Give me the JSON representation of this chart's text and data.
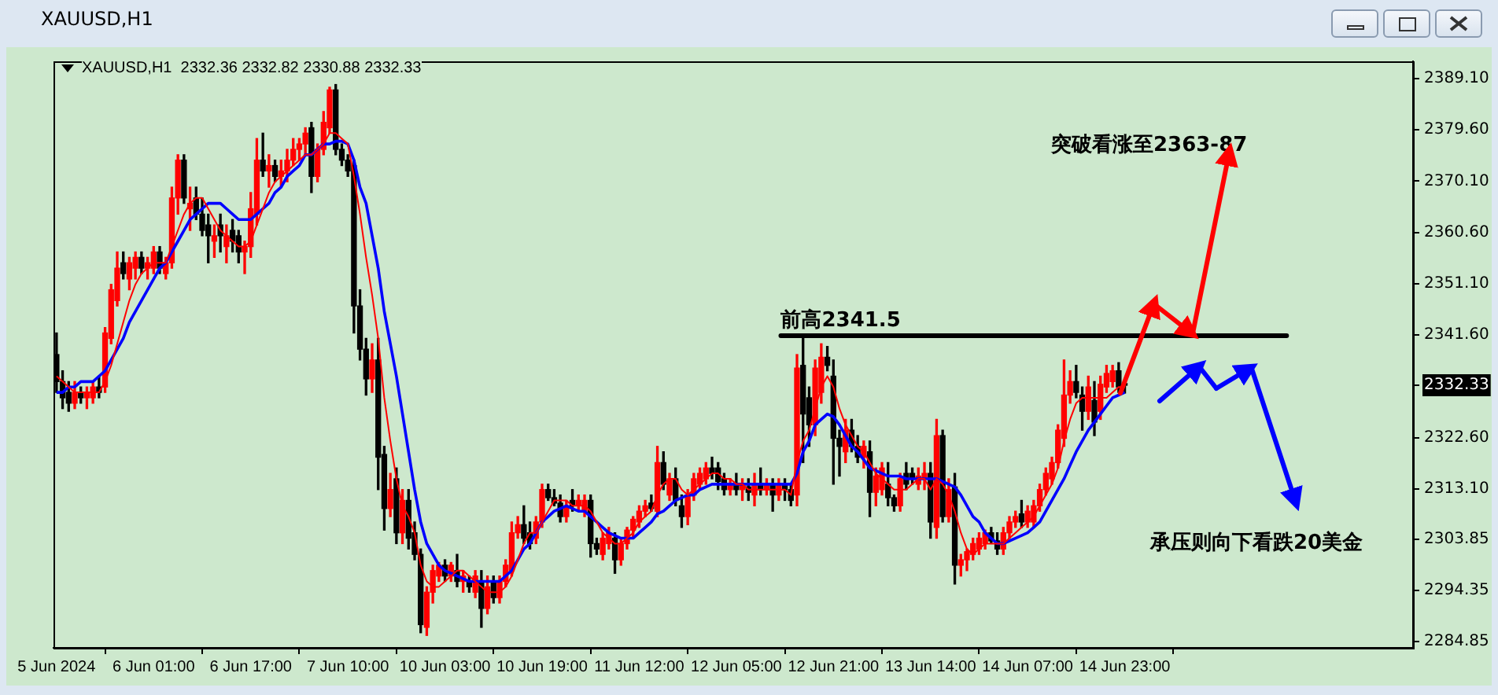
{
  "chart_data": {
    "type": "candlestick",
    "title": "XAUUSD,H1",
    "subtitle": "XAUUSD,H1  2332.36 2332.82 2330.88 2332.33",
    "annotations": [
      "突破看涨至2363-87",
      "承压则向下看跌20美金"
    ],
    "categories": [
      "5 Jun 2024",
      null,
      null,
      null,
      null,
      null,
      null,
      null,
      null,
      null,
      null,
      null,
      null,
      null,
      null,
      null,
      "6 Jun 01:00",
      null,
      null,
      null,
      null,
      null,
      null,
      null,
      null,
      null,
      null,
      null,
      null,
      null,
      null,
      null,
      "6 Jun 17:00",
      null,
      null,
      null,
      null,
      null,
      null,
      null,
      null,
      null,
      null,
      null,
      null,
      null,
      null,
      null,
      "7 Jun 10:00",
      null,
      null,
      null,
      null,
      null,
      null,
      null,
      null,
      null,
      null,
      null,
      null,
      null,
      null,
      null,
      "10 Jun 03:00",
      null,
      null,
      null,
      null,
      null,
      null,
      null,
      null,
      null,
      null,
      null,
      null,
      null,
      null,
      null,
      "10 Jun 19:00",
      null,
      null,
      null,
      null,
      null,
      null,
      null,
      null,
      null,
      null,
      null,
      null,
      null,
      null,
      null,
      "11 Jun 12:00",
      null,
      null,
      null,
      null,
      null,
      null,
      null,
      null,
      null,
      null,
      null,
      null,
      null,
      null,
      null,
      "12 Jun 05:00",
      null,
      null,
      null,
      null,
      null,
      null,
      null,
      null,
      null,
      null,
      null,
      null,
      null,
      null,
      null,
      "12 Jun 21:00",
      null,
      null,
      null,
      null,
      null,
      null,
      null,
      null,
      null,
      null,
      null,
      null,
      null,
      null,
      null,
      "13 Jun 14:00",
      null,
      null,
      null,
      null,
      null,
      null,
      null,
      null,
      null,
      null,
      null,
      null,
      null,
      null,
      null,
      "14 Jun 07:00",
      null,
      null,
      null,
      null,
      null,
      null,
      null,
      null,
      null,
      null,
      null,
      null,
      null,
      null,
      null,
      "14 Jun 23:00"
    ],
    "ohlc": [
      [
        2338,
        2342,
        2331,
        2333
      ],
      [
        2333,
        2335,
        2328,
        2330
      ],
      [
        2331,
        2333,
        2327.5,
        2329
      ],
      [
        2329,
        2333,
        2328,
        2331
      ],
      [
        2331,
        2332,
        2329,
        2330
      ],
      [
        2330,
        2332,
        2328,
        2331
      ],
      [
        2330,
        2333,
        2329,
        2332
      ],
      [
        2332,
        2334,
        2330,
        2331
      ],
      [
        2332,
        2343,
        2331,
        2342
      ],
      [
        2341,
        2351,
        2340,
        2350
      ],
      [
        2348,
        2357,
        2347,
        2354
      ],
      [
        2355,
        2357,
        2352,
        2353
      ],
      [
        2352,
        2356,
        2350,
        2355
      ],
      [
        2354,
        2357,
        2352,
        2356
      ],
      [
        2356,
        2357,
        2353,
        2354
      ],
      [
        2354,
        2356,
        2352,
        2355
      ],
      [
        2354,
        2358,
        2353,
        2357
      ],
      [
        2357,
        2358,
        2353,
        2354
      ],
      [
        2353,
        2356,
        2352,
        2355
      ],
      [
        2355,
        2369,
        2354,
        2367
      ],
      [
        2367,
        2375,
        2364,
        2374
      ],
      [
        2374,
        2375,
        2366,
        2367
      ],
      [
        2365,
        2369,
        2361,
        2366
      ],
      [
        2367,
        2369,
        2363,
        2364
      ],
      [
        2364,
        2367,
        2360,
        2361
      ],
      [
        2362,
        2364,
        2355,
        2360
      ],
      [
        2359,
        2362,
        2356,
        2360
      ],
      [
        2362,
        2364,
        2357,
        2360
      ],
      [
        2358,
        2362,
        2355,
        2360
      ],
      [
        2361,
        2363,
        2357,
        2359
      ],
      [
        2360,
        2361,
        2355,
        2357
      ],
      [
        2357,
        2359,
        2353,
        2358
      ],
      [
        2358,
        2368,
        2356,
        2365
      ],
      [
        2364,
        2378,
        2362,
        2374
      ],
      [
        2374,
        2379,
        2371,
        2372
      ],
      [
        2372,
        2375,
        2369,
        2373
      ],
      [
        2373,
        2374,
        2370,
        2371
      ],
      [
        2371,
        2374,
        2369,
        2372
      ],
      [
        2372,
        2376,
        2370,
        2374
      ],
      [
        2374,
        2378,
        2373,
        2376
      ],
      [
        2376,
        2378,
        2374,
        2377
      ],
      [
        2377,
        2380,
        2375,
        2379
      ],
      [
        2380,
        2381,
        2368,
        2371
      ],
      [
        2371,
        2377,
        2370,
        2376
      ],
      [
        2376,
        2383,
        2375,
        2381
      ],
      [
        2380,
        2387.5,
        2379,
        2387
      ],
      [
        2387,
        2388,
        2375,
        2376
      ],
      [
        2376,
        2377,
        2373,
        2374
      ],
      [
        2374,
        2375,
        2371,
        2372
      ],
      [
        2373,
        2374,
        2342,
        2347
      ],
      [
        2347,
        2350,
        2337,
        2339
      ],
      [
        2339,
        2341,
        2330.5,
        2333.5
      ],
      [
        2333.5,
        2340,
        2331,
        2337
      ],
      [
        2337,
        2341,
        2313,
        2319
      ],
      [
        2319.5,
        2321,
        2305.5,
        2309.5
      ],
      [
        2309.5,
        2316,
        2308,
        2313
      ],
      [
        2315,
        2317,
        2303,
        2305
      ],
      [
        2305,
        2313,
        2303,
        2311
      ],
      [
        2311,
        2313,
        2302,
        2304
      ],
      [
        2305,
        2307,
        2300,
        2301
      ],
      [
        2301,
        2302,
        2286.5,
        2288
      ],
      [
        2287.5,
        2295,
        2286,
        2294
      ],
      [
        2294,
        2299,
        2292,
        2298
      ],
      [
        2297,
        2299.5,
        2296,
        2299
      ],
      [
        2299,
        2300,
        2296,
        2297
      ],
      [
        2297,
        2299.5,
        2296,
        2299
      ],
      [
        2298,
        2301,
        2295,
        2296
      ],
      [
        2296,
        2298,
        2294,
        2297
      ],
      [
        2296,
        2297,
        2294,
        2295
      ],
      [
        2294,
        2298,
        2293,
        2297
      ],
      [
        2296,
        2298,
        2287.5,
        2291
      ],
      [
        2291,
        2297,
        2290,
        2295
      ],
      [
        2296,
        2297,
        2292,
        2293
      ],
      [
        2293,
        2297,
        2292,
        2296
      ],
      [
        2296,
        2300,
        2295,
        2299
      ],
      [
        2298,
        2307,
        2297,
        2305
      ],
      [
        2305,
        2308,
        2304,
        2306.5
      ],
      [
        2306.5,
        2310,
        2303,
        2304
      ],
      [
        2305,
        2307,
        2302,
        2303
      ],
      [
        2304,
        2308,
        2303,
        2307
      ],
      [
        2307,
        2314,
        2306,
        2313
      ],
      [
        2313,
        2314,
        2311,
        2311.5
      ],
      [
        2311.5,
        2313,
        2310,
        2310.5
      ],
      [
        2310.5,
        2312,
        2307,
        2308
      ],
      [
        2308,
        2311,
        2307,
        2310
      ],
      [
        2311,
        2313,
        2309,
        2310
      ],
      [
        2310,
        2312,
        2309,
        2311
      ],
      [
        2309,
        2312,
        2308,
        2311
      ],
      [
        2311,
        2312,
        2300.5,
        2303
      ],
      [
        2303,
        2304,
        2301,
        2302
      ],
      [
        2301,
        2305,
        2300,
        2304
      ],
      [
        2303,
        2306,
        2302,
        2305
      ],
      [
        2304,
        2305,
        2297.5,
        2300
      ],
      [
        2300,
        2304,
        2299,
        2303
      ],
      [
        2303,
        2306,
        2302,
        2305.5
      ],
      [
        2305.5,
        2308,
        2304,
        2307.5
      ],
      [
        2307,
        2310,
        2306,
        2309
      ],
      [
        2309,
        2311,
        2308,
        2310
      ],
      [
        2310.5,
        2312,
        2309,
        2309.5
      ],
      [
        2309,
        2321,
        2308,
        2318
      ],
      [
        2318,
        2320,
        2313,
        2314
      ],
      [
        2312,
        2316,
        2311,
        2315
      ],
      [
        2315,
        2317,
        2310,
        2311
      ],
      [
        2310,
        2312,
        2306,
        2308
      ],
      [
        2308,
        2313,
        2306.5,
        2312
      ],
      [
        2312,
        2316,
        2311,
        2315
      ],
      [
        2314,
        2317,
        2313,
        2316
      ],
      [
        2315,
        2318,
        2314,
        2317
      ],
      [
        2317,
        2319,
        2315,
        2316
      ],
      [
        2317,
        2318,
        2313,
        2314.5
      ],
      [
        2315,
        2316,
        2312,
        2313
      ],
      [
        2313,
        2315,
        2312,
        2314
      ],
      [
        2314,
        2316,
        2312,
        2313
      ],
      [
        2313,
        2315,
        2311,
        2314
      ],
      [
        2313.5,
        2315,
        2311,
        2312.5
      ],
      [
        2312,
        2316,
        2310,
        2314
      ],
      [
        2314,
        2317,
        2312,
        2313
      ],
      [
        2313,
        2315,
        2312,
        2314
      ],
      [
        2314,
        2315,
        2309,
        2312
      ],
      [
        2312,
        2315,
        2311,
        2314
      ],
      [
        2314,
        2315,
        2311,
        2313
      ],
      [
        2313,
        2314,
        2310,
        2311
      ],
      [
        2312,
        2338,
        2310,
        2335.5
      ],
      [
        2336,
        2341,
        2318,
        2327
      ],
      [
        2330,
        2332,
        2321,
        2325
      ],
      [
        2325,
        2337,
        2323,
        2335.5
      ],
      [
        2331,
        2340,
        2329,
        2337.5
      ],
      [
        2337.5,
        2339.5,
        2335,
        2336
      ],
      [
        2334,
        2337,
        2314,
        2322.5
      ],
      [
        2322.5,
        2324,
        2315.5,
        2321
      ],
      [
        2320,
        2326,
        2318,
        2324
      ],
      [
        2324,
        2326,
        2320,
        2321
      ],
      [
        2321,
        2323,
        2318,
        2319
      ],
      [
        2319,
        2322,
        2317,
        2321
      ],
      [
        2320,
        2322,
        2308,
        2312.5
      ],
      [
        2312.5,
        2317,
        2310,
        2315.5
      ],
      [
        2313,
        2318,
        2312,
        2317
      ],
      [
        2314,
        2318,
        2310,
        2311.5
      ],
      [
        2311.5,
        2312,
        2309,
        2310
      ],
      [
        2310,
        2316,
        2309,
        2315
      ],
      [
        2316,
        2318,
        2313,
        2314
      ],
      [
        2316,
        2317,
        2314,
        2315
      ],
      [
        2314,
        2317,
        2313,
        2315.5
      ],
      [
        2315,
        2318,
        2313,
        2316
      ],
      [
        2316,
        2318,
        2304,
        2307
      ],
      [
        2306,
        2326,
        2304,
        2323
      ],
      [
        2323,
        2324,
        2307,
        2308
      ],
      [
        2308,
        2315,
        2307,
        2313
      ],
      [
        2313.5,
        2316,
        2295.5,
        2299
      ],
      [
        2299,
        2301,
        2297,
        2300
      ],
      [
        2300,
        2302,
        2298,
        2301.5
      ],
      [
        2301,
        2304,
        2300,
        2303
      ],
      [
        2302,
        2305,
        2301,
        2304
      ],
      [
        2303,
        2305.5,
        2302,
        2305
      ],
      [
        2305,
        2306,
        2303,
        2303.5
      ],
      [
        2303.5,
        2305,
        2301,
        2302
      ],
      [
        2302,
        2306,
        2301,
        2305
      ],
      [
        2305,
        2308,
        2304,
        2307
      ],
      [
        2307,
        2309,
        2306,
        2308
      ],
      [
        2308.5,
        2311,
        2306,
        2307
      ],
      [
        2307,
        2310,
        2306,
        2309
      ],
      [
        2307,
        2311,
        2306,
        2310
      ],
      [
        2310,
        2314,
        2309,
        2313
      ],
      [
        2313,
        2317,
        2312,
        2316
      ],
      [
        2315,
        2319,
        2314,
        2318
      ],
      [
        2318,
        2325,
        2317,
        2324
      ],
      [
        2322.5,
        2337,
        2321,
        2330.5
      ],
      [
        2330.5,
        2335,
        2329,
        2333
      ],
      [
        2333,
        2336,
        2330,
        2331
      ],
      [
        2330.5,
        2332,
        2324,
        2327.5
      ],
      [
        2327.5,
        2334,
        2326,
        2332
      ],
      [
        2329.5,
        2333,
        2323,
        2325.5
      ],
      [
        2327.5,
        2334,
        2326,
        2332.5
      ],
      [
        2332,
        2336,
        2331,
        2334.5
      ],
      [
        2333,
        2336,
        2332,
        2335
      ],
      [
        2335,
        2336.5,
        2331,
        2332
      ],
      [
        2332.36,
        2332.82,
        2330.88,
        2332.33
      ]
    ],
    "colors": [
      "#000000",
      "#000000",
      "#000000",
      "#ff0000",
      "#000000",
      "#ff0000",
      "#ff0000",
      "#000000",
      "#ff0000",
      "#ff0000",
      "#ff0000",
      "#000000",
      "#ff0000",
      "#ff0000",
      "#000000",
      "#ff0000",
      "#ff0000",
      "#000000",
      "#ff0000",
      "#ff0000",
      "#ff0000",
      "#000000",
      "#ff0000",
      "#000000",
      "#000000",
      "#000000",
      "#ff0000",
      "#000000",
      "#ff0000",
      "#000000",
      "#000000",
      "#ff0000",
      "#ff0000",
      "#ff0000",
      "#000000",
      "#ff0000",
      "#000000",
      "#ff0000",
      "#ff0000",
      "#ff0000",
      "#ff0000",
      "#ff0000",
      "#000000",
      "#ff0000",
      "#ff0000",
      "#ff0000",
      "#000000",
      "#000000",
      "#000000",
      "#000000",
      "#000000",
      "#000000",
      "#ff0000",
      "#000000",
      "#000000",
      "#ff0000",
      "#000000",
      "#ff0000",
      "#000000",
      "#000000",
      "#000000",
      "#ff0000",
      "#ff0000",
      "#ff0000",
      "#000000",
      "#ff0000",
      "#000000",
      "#ff0000",
      "#000000",
      "#ff0000",
      "#000000",
      "#ff0000",
      "#000000",
      "#ff0000",
      "#ff0000",
      "#ff0000",
      "#ff0000",
      "#000000",
      "#000000",
      "#ff0000",
      "#ff0000",
      "#000000",
      "#000000",
      "#000000",
      "#ff0000",
      "#000000",
      "#ff0000",
      "#ff0000",
      "#000000",
      "#000000",
      "#ff0000",
      "#ff0000",
      "#000000",
      "#ff0000",
      "#ff0000",
      "#ff0000",
      "#ff0000",
      "#ff0000",
      "#000000",
      "#ff0000",
      "#000000",
      "#ff0000",
      "#000000",
      "#000000",
      "#ff0000",
      "#ff0000",
      "#ff0000",
      "#ff0000",
      "#000000",
      "#000000",
      "#000000",
      "#ff0000",
      "#000000",
      "#ff0000",
      "#000000",
      "#ff0000",
      "#000000",
      "#ff0000",
      "#000000",
      "#ff0000",
      "#000000",
      "#000000",
      "#ff0000",
      "#000000",
      "#000000",
      "#ff0000",
      "#ff0000",
      "#000000",
      "#000000",
      "#000000",
      "#ff0000",
      "#000000",
      "#000000",
      "#ff0000",
      "#000000",
      "#ff0000",
      "#ff0000",
      "#000000",
      "#000000",
      "#ff0000",
      "#000000",
      "#000000",
      "#ff0000",
      "#ff0000",
      "#000000",
      "#ff0000",
      "#000000",
      "#ff0000",
      "#000000",
      "#ff0000",
      "#ff0000",
      "#ff0000",
      "#ff0000",
      "#ff0000",
      "#000000",
      "#000000",
      "#ff0000",
      "#ff0000",
      "#ff0000",
      "#000000",
      "#ff0000",
      "#ff0000",
      "#ff0000",
      "#ff0000",
      "#ff0000",
      "#ff0000",
      "#ff0000",
      "#ff0000",
      "#000000",
      "#000000",
      "#ff0000",
      "#000000",
      "#ff0000",
      "#ff0000",
      "#ff0000",
      "#000000",
      "#000000"
    ],
    "series": [
      {
        "type": "line",
        "color": "#ff0000",
        "values": [
          2334,
          2333,
          2332,
          2331,
          2331,
          2331,
          2331,
          2331,
          2333,
          2336,
          2340,
          2344,
          2348,
          2351,
          2353,
          2354,
          2355,
          2355,
          2355,
          2358,
          2361,
          2364,
          2366,
          2367,
          2367,
          2365,
          2363,
          2361,
          2360,
          2359,
          2358,
          2358,
          2359,
          2362,
          2365,
          2368,
          2370,
          2371,
          2372,
          2373,
          2374,
          2375,
          2375,
          2376,
          2377,
          2379,
          2379,
          2378,
          2377,
          2371,
          2364,
          2356,
          2349,
          2341,
          2330,
          2322,
          2315,
          2310,
          2308,
          2305,
          2299,
          2296,
          2295,
          2295,
          2296,
          2297,
          2298,
          2298,
          2297,
          2296,
          2295,
          2294,
          2294,
          2294,
          2295,
          2297,
          2300,
          2303,
          2305,
          2305,
          2307,
          2309,
          2311,
          2311,
          2311,
          2310,
          2310,
          2310,
          2309,
          2307,
          2305,
          2304,
          2303,
          2303,
          2304,
          2305,
          2307,
          2308,
          2309,
          2312,
          2314,
          2315,
          2315,
          2313,
          2312,
          2313,
          2314,
          2315,
          2316,
          2316,
          2315,
          2315,
          2314,
          2314,
          2313,
          2313,
          2313,
          2313,
          2313,
          2313,
          2313,
          2312,
          2318,
          2322,
          2324,
          2328,
          2332,
          2334,
          2332,
          2328,
          2325,
          2323,
          2321,
          2320,
          2318,
          2316,
          2315,
          2314,
          2313,
          2313,
          2313,
          2314,
          2315,
          2315,
          2313,
          2315,
          2314,
          2312,
          2309,
          2305,
          2302,
          2301,
          2302,
          2303,
          2303,
          2303,
          2303,
          2304,
          2305,
          2306,
          2307,
          2308,
          2310,
          2312,
          2314,
          2317,
          2322,
          2326,
          2329,
          2330,
          2330,
          2330,
          2330,
          2330,
          2331,
          2332,
          2332
        ]
      },
      {
        "type": "line",
        "color": "#0000ff",
        "values": [
          2331,
          2331,
          2332,
          2332,
          2333,
          2333,
          2333,
          2334,
          2335,
          2337,
          2339,
          2341,
          2344,
          2346,
          2348,
          2350,
          2352,
          2354,
          2355,
          2357,
          2359,
          2361,
          2363,
          2364,
          2365,
          2366,
          2366,
          2366,
          2365,
          2364,
          2363,
          2363,
          2363,
          2364,
          2365,
          2366,
          2368,
          2369,
          2371,
          2372,
          2373,
          2375,
          2375,
          2376,
          2377,
          2377,
          2377.5,
          2377.5,
          2377,
          2374,
          2369,
          2366,
          2360,
          2354,
          2346,
          2340,
          2334,
          2327,
          2320,
          2313,
          2307,
          2303,
          2301,
          2299,
          2298,
          2297.5,
          2297,
          2296.5,
          2296,
          2296,
          2296,
          2296,
          2296,
          2296,
          2297,
          2298,
          2300,
          2302,
          2303,
          2305,
          2307,
          2308,
          2309,
          2309.5,
          2310,
          2309.5,
          2309,
          2309,
          2308,
          2307,
          2306,
          2305,
          2304.5,
          2304,
          2304,
          2304,
          2305,
          2306,
          2307,
          2308.5,
          2309,
          2310,
          2311,
          2311.5,
          2312,
          2312,
          2313,
          2313.5,
          2314,
          2314,
          2314,
          2314,
          2314,
          2314,
          2314,
          2314,
          2314,
          2314,
          2314,
          2314,
          2314,
          2314,
          2316,
          2320,
          2322,
          2325,
          2326,
          2327,
          2326.5,
          2325,
          2323,
          2321,
          2320,
          2318.5,
          2317,
          2316.5,
          2316,
          2315.5,
          2315.5,
          2315.5,
          2315,
          2315,
          2315,
          2315,
          2315,
          2315,
          2314.5,
          2314,
          2313.5,
          2312,
          2310,
          2308,
          2307,
          2305,
          2304,
          2303,
          2303,
          2303.5,
          2304,
          2304.5,
          2305,
          2306,
          2307,
          2309,
          2311,
          2313,
          2315,
          2317.5,
          2320,
          2322,
          2324,
          2325.5,
          2327,
          2328.5,
          2330,
          2330.5,
          2331
        ]
      }
    ],
    "ylim": [
      2283.7,
      2392.3
    ],
    "yticks": [
      {
        "value": 2389.1,
        "label": "2389.10"
      },
      {
        "value": 2379.6,
        "label": "2379.60"
      },
      {
        "value": 2370.1,
        "label": "2370.10"
      },
      {
        "value": 2360.6,
        "label": "2360.60"
      },
      {
        "value": 2351.1,
        "label": "2351.10"
      },
      {
        "value": 2341.6,
        "label": "2341.60"
      },
      {
        "value": 2332.33,
        "label": "2332.33"
      },
      {
        "value": 2322.6,
        "label": "2322.60"
      },
      {
        "value": 2313.1,
        "label": "2313.10"
      },
      {
        "value": 2303.85,
        "label": "2303.85"
      },
      {
        "value": 2294.35,
        "label": "2294.35"
      },
      {
        "value": 2284.85,
        "label": "2284.85"
      }
    ],
    "ref_lines": [
      {
        "axis": "y",
        "value": 2341.5,
        "label": "前高2341.5",
        "color": "#000000"
      }
    ]
  }
}
